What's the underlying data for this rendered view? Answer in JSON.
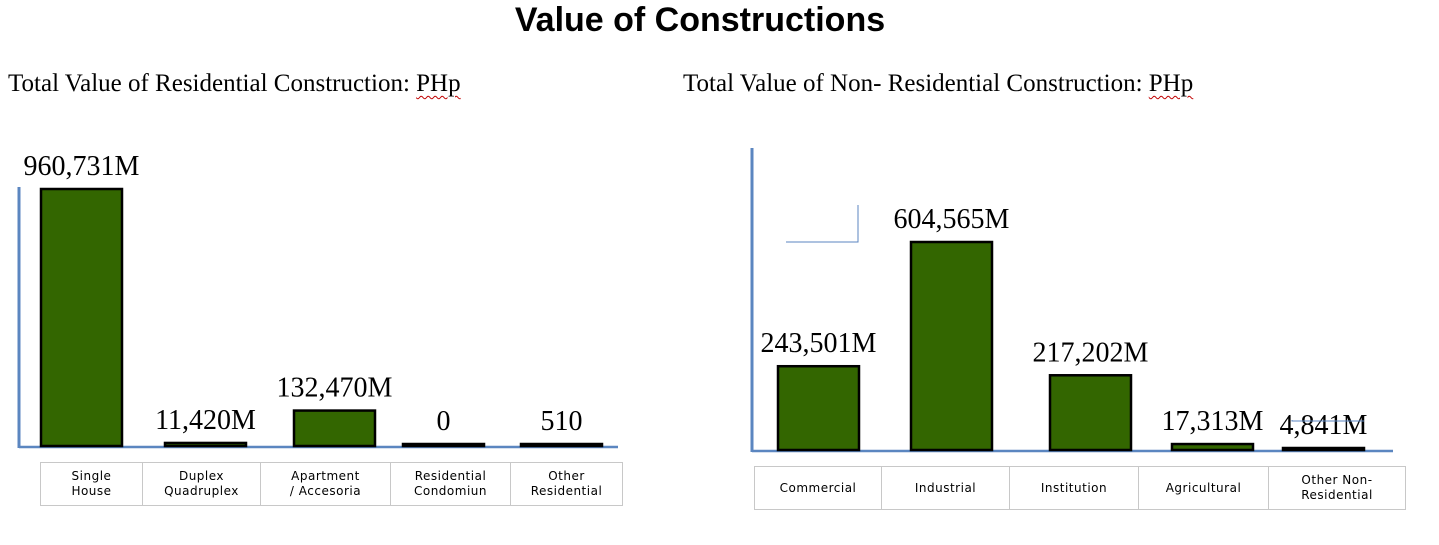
{
  "page": {
    "title": "Value of Constructions"
  },
  "chart_data": [
    {
      "type": "bar",
      "title": "Total Value of Residential Construction: ",
      "title_unit": "PHp",
      "categories": [
        "Single\nHouse",
        "Duplex\nQuadruplex",
        "Apartment\n/ Accesoria",
        "Residential\nCondomiun",
        "Other\nResidential"
      ],
      "values": [
        960731,
        11420,
        132470,
        0,
        510
      ],
      "value_labels": [
        "960,731M",
        "11,420M",
        "132,470M",
        "0",
        "510"
      ],
      "bar_color": "#336600",
      "axis_color": "#5b86c0"
    },
    {
      "type": "bar",
      "title": "Total Value of Non- Residential Construction: ",
      "title_unit": "PHp",
      "categories": [
        "Commercial",
        "Industrial",
        "Institution",
        "Agricultural",
        "Other Non-\nResidential"
      ],
      "values": [
        243501,
        604565,
        217202,
        17313,
        4841
      ],
      "value_labels": [
        "243,501M",
        "604,565M",
        "217,202M",
        "17,313M",
        "4,841M"
      ],
      "bar_color": "#336600",
      "axis_color": "#5b86c0"
    }
  ]
}
